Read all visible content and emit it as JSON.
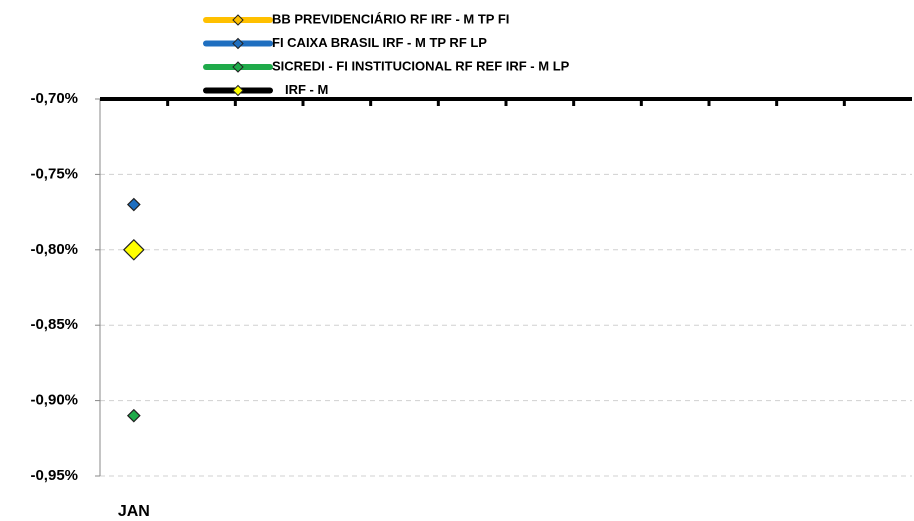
{
  "chart_data": {
    "type": "line",
    "categories": [
      "JAN",
      null,
      null,
      null,
      null,
      null,
      null,
      null,
      null,
      null,
      null,
      null
    ],
    "series": [
      {
        "name": "BB PREVIDENCIÁRIO RF IRF - M TP FI",
        "color": "#ffc000",
        "marker_color": "#ffc000",
        "values": [
          -0.8,
          null,
          null,
          null,
          null,
          null,
          null,
          null,
          null,
          null,
          null,
          null
        ]
      },
      {
        "name": "FI CAIXA BRASIL IRF - M TP RF LP",
        "color": "#1f6fc0",
        "marker_color": "#1f6fc0",
        "values": [
          -0.77,
          null,
          null,
          null,
          null,
          null,
          null,
          null,
          null,
          null,
          null,
          null
        ]
      },
      {
        "name": "SICREDI - FI INSTITUCIONAL RF REF IRF - M LP",
        "color": "#1faa4a",
        "marker_color": "#1faa4a",
        "values": [
          -0.91,
          null,
          null,
          null,
          null,
          null,
          null,
          null,
          null,
          null,
          null,
          null
        ]
      },
      {
        "name": "IRF - M",
        "color": "#000000",
        "marker_color": "#ffff00",
        "values": [
          -0.8,
          null,
          null,
          null,
          null,
          null,
          null,
          null,
          null,
          null,
          null,
          null
        ]
      }
    ],
    "ylim": [
      -0.95,
      -0.7
    ],
    "yticks": [
      {
        "value": -0.7,
        "label": "-0,70%"
      },
      {
        "value": -0.75,
        "label": "-0,75%"
      },
      {
        "value": -0.8,
        "label": "-0,80%"
      },
      {
        "value": -0.85,
        "label": "-0,85%"
      },
      {
        "value": -0.9,
        "label": "-0,90%"
      },
      {
        "value": -0.95,
        "label": "-0,95%"
      }
    ],
    "grid": true,
    "legend": "top"
  }
}
